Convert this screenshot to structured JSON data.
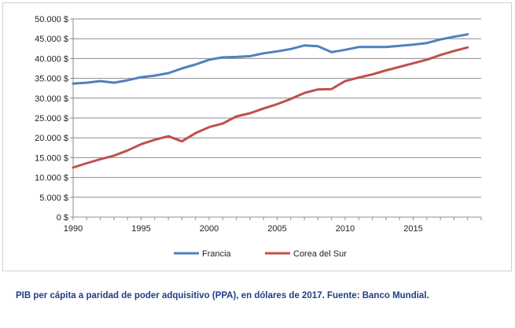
{
  "caption": "PIB per cápita a paridad de poder adquisitivo (PPA), en dólares de 2017. Fuente: Banco Mundial.",
  "chart_data": {
    "type": "line",
    "title": "",
    "xlabel": "",
    "ylabel": "",
    "x": [
      1990,
      1991,
      1992,
      1993,
      1994,
      1995,
      1996,
      1997,
      1998,
      1999,
      2000,
      2001,
      2002,
      2003,
      2004,
      2005,
      2006,
      2007,
      2008,
      2009,
      2010,
      2011,
      2012,
      2013,
      2014,
      2015,
      2016,
      2017,
      2018,
      2019
    ],
    "xticks": [
      "1990",
      "1995",
      "2000",
      "2005",
      "2010",
      "2015"
    ],
    "xlim": [
      1990,
      2020
    ],
    "ylim": [
      0,
      50000
    ],
    "yticks": [
      "0 $",
      "5.000 $",
      "10.000 $",
      "15.000 $",
      "20.000 $",
      "25.000 $",
      "30.000 $",
      "35.000 $",
      "40.000 $",
      "45.000 $",
      "50.000 $"
    ],
    "grid": "horizontal",
    "legend": "bottom",
    "series": [
      {
        "name": "Francia",
        "color": "#4f81bd",
        "values": [
          33700,
          33900,
          34300,
          33900,
          34500,
          35300,
          35700,
          36300,
          37500,
          38500,
          39700,
          40300,
          40400,
          40600,
          41300,
          41800,
          42400,
          43300,
          43100,
          41600,
          42200,
          42900,
          42900,
          42900,
          43200,
          43500,
          43900,
          44800,
          45500,
          46100
        ]
      },
      {
        "name": "Corea del Sur",
        "color": "#c0504d",
        "values": [
          12500,
          13600,
          14600,
          15500,
          16800,
          18400,
          19500,
          20400,
          19100,
          21200,
          22700,
          23600,
          25400,
          26200,
          27400,
          28500,
          29800,
          31300,
          32200,
          32300,
          34300,
          35200,
          36000,
          37000,
          37900,
          38800,
          39700,
          40900,
          41900,
          42800
        ]
      }
    ]
  }
}
